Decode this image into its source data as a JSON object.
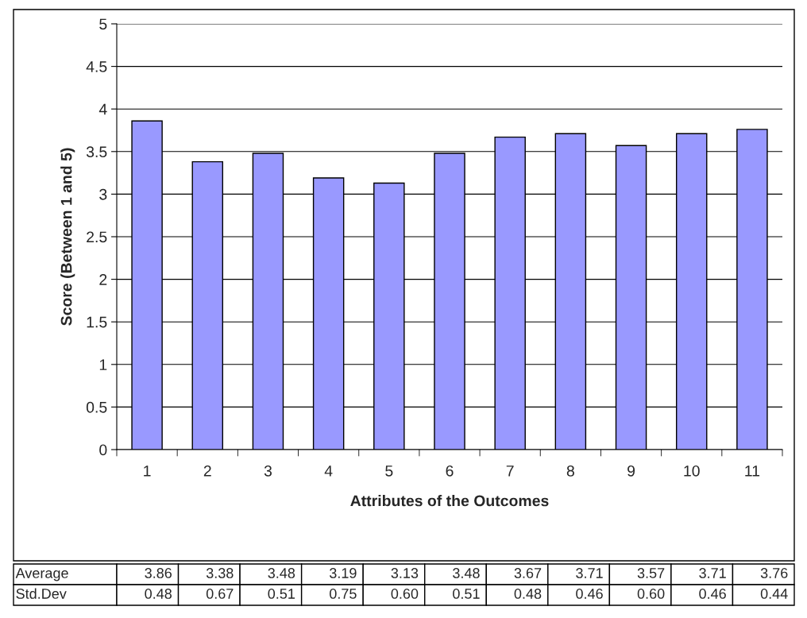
{
  "chart_data": {
    "type": "bar",
    "xlabel": "Attributes of the Outcomes",
    "ylabel": "Score (Between 1 and 5)",
    "categories": [
      "1",
      "2",
      "3",
      "4",
      "5",
      "6",
      "7",
      "8",
      "9",
      "10",
      "11"
    ],
    "values": [
      3.86,
      3.38,
      3.48,
      3.19,
      3.13,
      3.48,
      3.67,
      3.71,
      3.57,
      3.71,
      3.76
    ],
    "value_labels": [
      "3.86",
      "3.38",
      "3.48",
      "3.19",
      "3.13",
      "3.48",
      "3.67",
      "3.71",
      "3.57",
      "3.71",
      "3.76"
    ],
    "color": "#9999ff",
    "ylim": [
      0,
      5
    ],
    "yticks": [
      0,
      {
        "value": 0.5,
        "label": "0.5"
      },
      1,
      {
        "value": 1.5,
        "label": "1.5"
      },
      2,
      {
        "value": 2.5,
        "label": "2.5"
      },
      3,
      {
        "value": 3.5,
        "label": "3.5"
      },
      4,
      {
        "value": 4.5,
        "label": "4.5"
      },
      5
    ],
    "grid": "y",
    "annotations": [
      "Average",
      "Std.Dev",
      "0.48",
      "0.67",
      "0.51",
      "0.75",
      "0.60",
      "0.51",
      "0.48",
      "0.46",
      "0.60",
      "0.46",
      "0.44"
    ]
  }
}
